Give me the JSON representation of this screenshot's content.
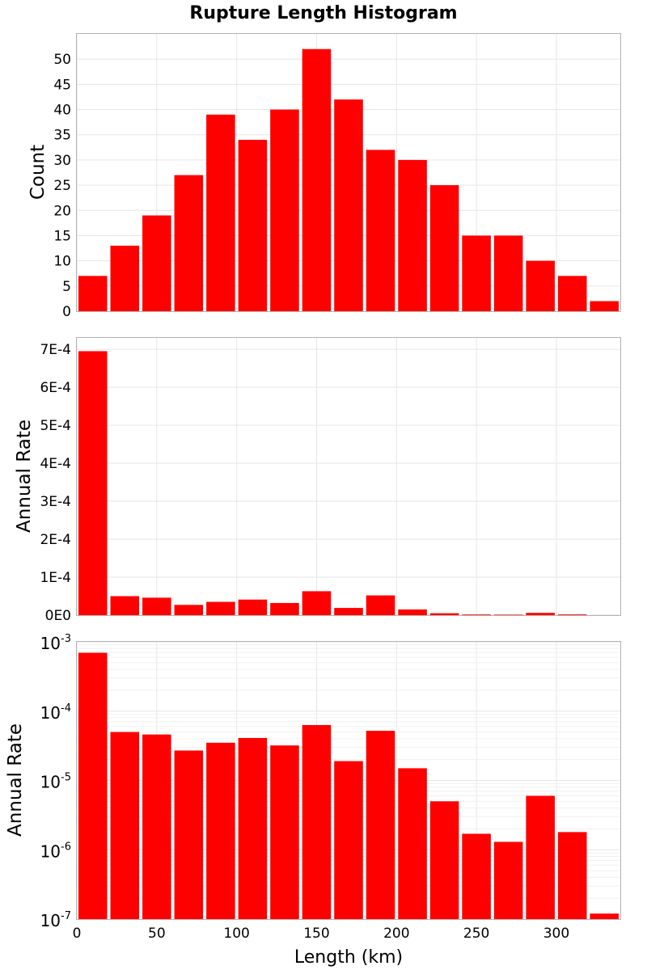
{
  "figure": {
    "title": "Rupture Length Histogram",
    "xlabel": "Length (km)",
    "bar_color": "#ff0000",
    "xlim": [
      0,
      340
    ],
    "xticks": [
      "0",
      "50",
      "100",
      "150",
      "200",
      "250",
      "300"
    ],
    "bins": [
      10,
      30,
      50,
      70,
      90,
      110,
      130,
      150,
      170,
      190,
      210,
      230,
      250,
      270,
      290,
      310,
      330
    ]
  },
  "chart_data": [
    {
      "type": "bar",
      "name": "count",
      "ylabel": "Count",
      "ylim": [
        0,
        55
      ],
      "yticks": [
        "0",
        "5",
        "10",
        "15",
        "20",
        "25",
        "30",
        "35",
        "40",
        "45",
        "50"
      ],
      "x": [
        10,
        30,
        50,
        70,
        90,
        110,
        130,
        150,
        170,
        190,
        210,
        230,
        250,
        270,
        290,
        310,
        330
      ],
      "values": [
        7,
        13,
        19,
        27,
        39,
        34,
        40,
        52,
        42,
        32,
        30,
        25,
        15,
        15,
        10,
        7,
        2
      ]
    },
    {
      "type": "bar",
      "name": "rate-linear",
      "ylabel": "Annual Rate",
      "ylim": [
        0,
        0.00073
      ],
      "yticks": [
        "0E0",
        "1E-4",
        "2E-4",
        "3E-4",
        "4E-4",
        "5E-4",
        "6E-4",
        "7E-4"
      ],
      "x": [
        10,
        30,
        50,
        70,
        90,
        110,
        130,
        150,
        170,
        190,
        210,
        230,
        250,
        270,
        290,
        310,
        330
      ],
      "values": [
        0.000695,
        5e-05,
        4.6e-05,
        2.7e-05,
        3.5e-05,
        4.1e-05,
        3.2e-05,
        6.3e-05,
        1.9e-05,
        5.2e-05,
        1.5e-05,
        5e-06,
        1.7e-06,
        1.3e-06,
        6e-06,
        1.8e-06,
        1.2e-07
      ]
    },
    {
      "type": "bar",
      "name": "rate-log",
      "ylabel": "Annual Rate",
      "yscale": "log",
      "ylim": [
        1e-07,
        0.001
      ],
      "yticks": [
        {
          "base": "10",
          "exp": "-3"
        },
        {
          "base": "10",
          "exp": "-4"
        },
        {
          "base": "10",
          "exp": "-5"
        },
        {
          "base": "10",
          "exp": "-6"
        },
        {
          "base": "10",
          "exp": "-7"
        }
      ],
      "x": [
        10,
        30,
        50,
        70,
        90,
        110,
        130,
        150,
        170,
        190,
        210,
        230,
        250,
        270,
        290,
        310,
        330
      ],
      "values": [
        0.000695,
        5e-05,
        4.6e-05,
        2.7e-05,
        3.5e-05,
        4.1e-05,
        3.2e-05,
        6.3e-05,
        1.9e-05,
        5.2e-05,
        1.5e-05,
        5e-06,
        1.7e-06,
        1.3e-06,
        6e-06,
        1.8e-06,
        1.2e-07
      ]
    }
  ]
}
